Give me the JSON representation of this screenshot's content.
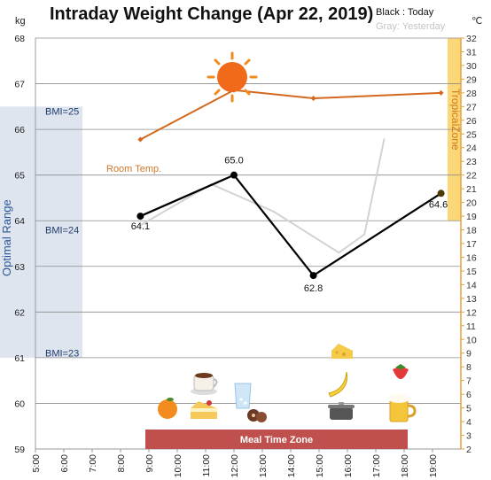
{
  "chart_data": {
    "type": "line",
    "title": "Intraday Weight Change (Apr 22, 2019)",
    "legend": {
      "today": "Black : Today",
      "yesterday": "Gray: Yesterday"
    },
    "y_unit_left": "kg",
    "y_unit_right": "℃",
    "ylim": [
      59,
      68
    ],
    "yticks_left": [
      "59",
      "60",
      "61",
      "62",
      "63",
      "64",
      "65",
      "66",
      "67",
      "68"
    ],
    "ylim_right": [
      2,
      32
    ],
    "yticks_right": [
      "2",
      "3",
      "4",
      "5",
      "6",
      "7",
      "8",
      "9",
      "10",
      "11",
      "12",
      "13",
      "14",
      "15",
      "16",
      "17",
      "18",
      "19",
      "20",
      "21",
      "22",
      "23",
      "24",
      "25",
      "26",
      "27",
      "28",
      "29",
      "30",
      "31",
      "32"
    ],
    "xlim": [
      5,
      20
    ],
    "x_ticks": [
      "5:00",
      "6:00",
      "7:00",
      "8:00",
      "9:00",
      "10:00",
      "11:00",
      "12:00",
      "13:00",
      "14:00",
      "15:00",
      "16:00",
      "17:00",
      "18:00",
      "19:00"
    ],
    "series": [
      {
        "name": "Today",
        "color": "#000000",
        "x": [
          8.7,
          12,
          14.8,
          19.3
        ],
        "y": [
          64.1,
          65.0,
          62.8,
          64.6
        ],
        "labels": [
          "64.1",
          "65.0",
          "62.8",
          "64.6"
        ]
      },
      {
        "name": "Yesterday",
        "color": "#d3d3d3",
        "x": [
          8.7,
          11.2,
          13.4,
          15.7,
          16.6,
          17.3
        ],
        "y": [
          63.9,
          64.8,
          64.2,
          63.3,
          63.7,
          65.8
        ]
      },
      {
        "name": "Room Temp.",
        "color": "#d2691e",
        "axis": "right",
        "x": [
          8.7,
          12,
          14.8,
          19.3
        ],
        "y": [
          24.6,
          28.2,
          27.6,
          28.0
        ]
      }
    ],
    "bands": {
      "optimal": {
        "label": "Optimal Range",
        "ymin": 61,
        "ymax": 66.5,
        "color": "#dfe5ee"
      },
      "tropical": {
        "label": "TropicalZone",
        "ymin": 64,
        "ymax": 68,
        "color": "#fbd778"
      }
    },
    "bmi_lines": [
      {
        "label": "BMI=25",
        "y": 66.4
      },
      {
        "label": "BMI=24",
        "y": 63.8
      },
      {
        "label": "BMI=23",
        "y": 61.1
      }
    ],
    "meal_zone": {
      "label": "Meal Time Zone",
      "xmin": 9,
      "xmax": 18,
      "color": "#c0504d"
    },
    "grid": true,
    "icons": [
      "sun-icon",
      "orange-icon",
      "cake-icon",
      "coffee-icon",
      "water-glass-icon",
      "cookies-icon",
      "cheese-icon",
      "banana-icon",
      "pot-icon",
      "strawberry-icon",
      "beer-icon"
    ]
  }
}
